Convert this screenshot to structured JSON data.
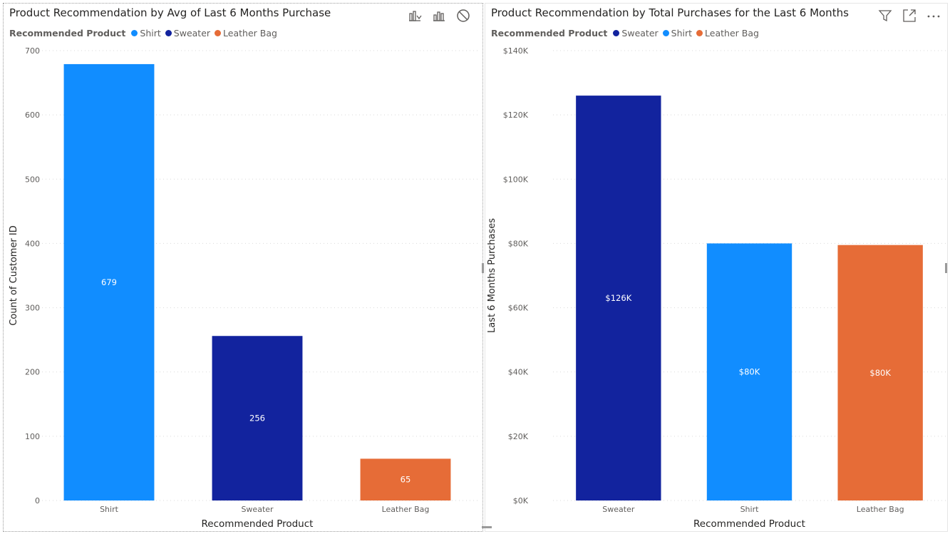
{
  "visuals": [
    {
      "title": "Product Recommendation by Avg of Last 6 Months Purchase",
      "legend": {
        "title": "Recommended Product",
        "items": [
          {
            "label": "Shirt",
            "color": "#118DFF"
          },
          {
            "label": "Sweater",
            "color": "#12239E"
          },
          {
            "label": "Leather Bag",
            "color": "#E66C37"
          }
        ]
      },
      "toolbar_icons": [
        "drill-through-icon",
        "column-chart-icon",
        "no-entry-icon"
      ]
    },
    {
      "title": "Product Recommendation by Total Purchases for the Last 6 Months",
      "legend": {
        "title": "Recommended Product",
        "items": [
          {
            "label": "Sweater",
            "color": "#12239E"
          },
          {
            "label": "Shirt",
            "color": "#118DFF"
          },
          {
            "label": "Leather Bag",
            "color": "#E66C37"
          }
        ]
      },
      "toolbar_icons": [
        "filter-icon",
        "focus-mode-icon",
        "more-options-icon"
      ]
    }
  ],
  "chart_data": [
    {
      "type": "bar",
      "title": "Product Recommendation by Avg of Last 6 Months Purchase",
      "categories": [
        "Shirt",
        "Sweater",
        "Leather Bag"
      ],
      "values": [
        679,
        256,
        65
      ],
      "data_labels": [
        "679",
        "256",
        "65"
      ],
      "colors": [
        "#118DFF",
        "#12239E",
        "#E66C37"
      ],
      "xlabel": "Recommended Product",
      "ylabel": "Count of Customer ID",
      "ylim": [
        0,
        700
      ],
      "yticks": [
        0,
        100,
        200,
        300,
        400,
        500,
        600,
        700
      ],
      "ytick_labels": [
        "0",
        "100",
        "200",
        "300",
        "400",
        "500",
        "600",
        "700"
      ],
      "grid": true
    },
    {
      "type": "bar",
      "title": "Product Recommendation by Total Purchases for the Last 6 Months",
      "categories": [
        "Sweater",
        "Shirt",
        "Leather Bag"
      ],
      "values": [
        126000,
        80000,
        79500
      ],
      "data_labels": [
        "$126K",
        "$80K",
        "$80K"
      ],
      "colors": [
        "#12239E",
        "#118DFF",
        "#E66C37"
      ],
      "xlabel": "Recommended Product",
      "ylabel": "Last 6 Months Purchases",
      "ylim": [
        0,
        140000
      ],
      "yticks": [
        0,
        20000,
        40000,
        60000,
        80000,
        100000,
        120000,
        140000
      ],
      "ytick_labels": [
        "$0K",
        "$20K",
        "$40K",
        "$60K",
        "$80K",
        "$100K",
        "$120K",
        "$140K"
      ],
      "grid": true
    }
  ]
}
